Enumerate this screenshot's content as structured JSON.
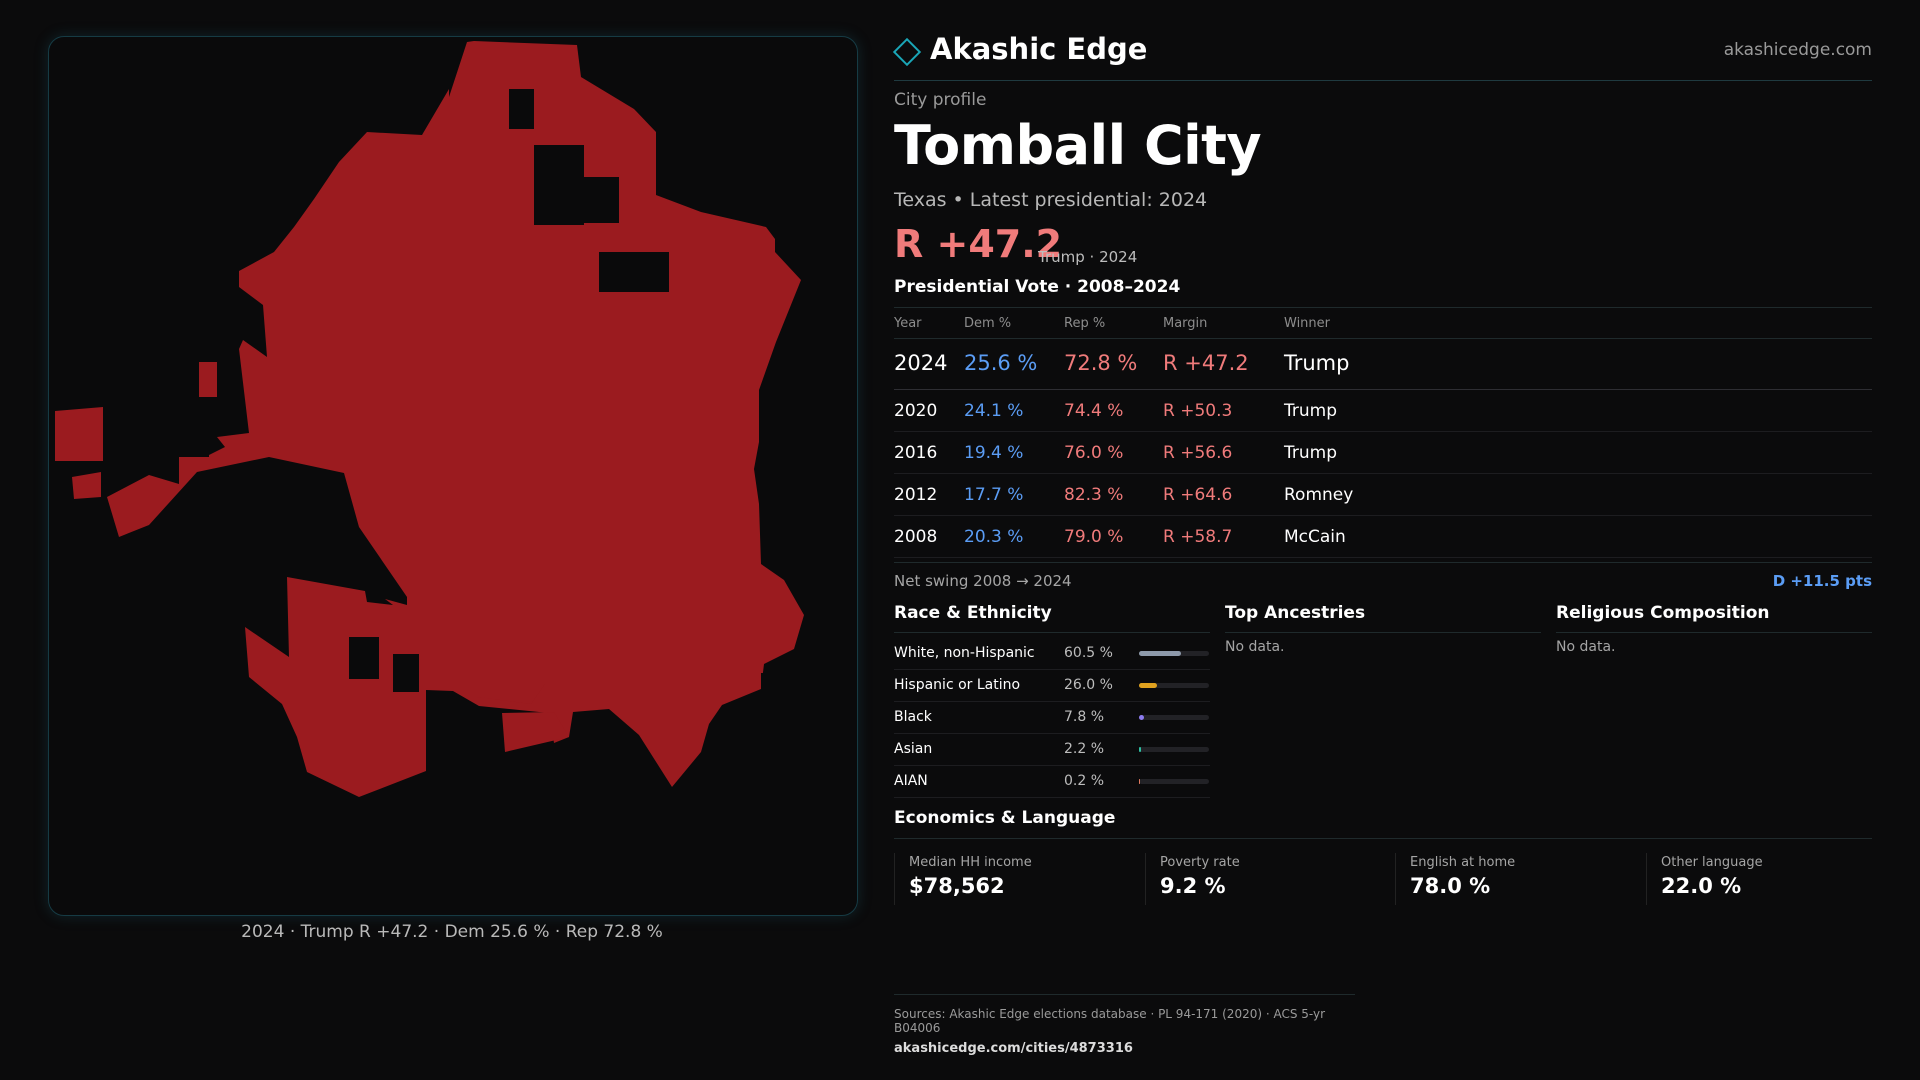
{
  "brand": {
    "name": "Akashic Edge",
    "url": "akashicedge.com",
    "accent": "#1aa6b7"
  },
  "header": {
    "profile_label": "City profile",
    "city": "Tomball City",
    "subtitle": "Texas • Latest presidential: 2024",
    "margin": "R +47.2",
    "margin_sub": "Trump · 2024"
  },
  "map": {
    "fill_color": "#9b1b1f",
    "caption": "2024 · Trump R +47.2 · Dem 25.6 % · Rep 72.8 %"
  },
  "vote": {
    "heading": "Presidential Vote · 2008–2024",
    "columns": {
      "year": "Year",
      "dem": "Dem %",
      "rep": "Rep %",
      "margin": "Margin",
      "winner": "Winner"
    },
    "rows": [
      {
        "year": "2024",
        "dem": "25.6 %",
        "rep": "72.8 %",
        "margin": "R +47.2",
        "winner": "Trump"
      },
      {
        "year": "2020",
        "dem": "24.1 %",
        "rep": "74.4 %",
        "margin": "R +50.3",
        "winner": "Trump"
      },
      {
        "year": "2016",
        "dem": "19.4 %",
        "rep": "76.0 %",
        "margin": "R +56.6",
        "winner": "Trump"
      },
      {
        "year": "2012",
        "dem": "17.7 %",
        "rep": "82.3 %",
        "margin": "R +64.6",
        "winner": "Romney"
      },
      {
        "year": "2008",
        "dem": "20.3 %",
        "rep": "79.0 %",
        "margin": "R +58.7",
        "winner": "McCain"
      }
    ],
    "dem_color": "#5b9df5",
    "rep_color": "#f07b7b"
  },
  "swing": {
    "label": "Net swing 2008 → 2024",
    "value": "D +11.5 pts"
  },
  "race": {
    "title": "Race & Ethnicity",
    "rows": [
      {
        "name": "White, non-Hispanic",
        "pct": "60.5 %",
        "share": 0.605,
        "color": "#8e9aab"
      },
      {
        "name": "Hispanic or Latino",
        "pct": "26.0 %",
        "share": 0.26,
        "color": "#e0a21f"
      },
      {
        "name": "Black",
        "pct": "7.8 %",
        "share": 0.078,
        "color": "#8d7cf0"
      },
      {
        "name": "Asian",
        "pct": "2.2 %",
        "share": 0.022,
        "color": "#2fbfa2"
      },
      {
        "name": "AIAN",
        "pct": "0.2 %",
        "share": 0.002,
        "color": "#e07a5f"
      }
    ]
  },
  "ancestries": {
    "title": "Top Ancestries",
    "empty": "No data."
  },
  "religion": {
    "title": "Religious Composition",
    "empty": "No data."
  },
  "economics": {
    "title": "Economics & Language",
    "cards": [
      {
        "label": "Median HH income",
        "value": "$78,562"
      },
      {
        "label": "Poverty rate",
        "value": "9.2 %"
      },
      {
        "label": "English at home",
        "value": "78.0 %"
      },
      {
        "label": "Other language",
        "value": "22.0 %"
      }
    ]
  },
  "footer": {
    "sources": "Sources: Akashic Edge elections database · PL 94-171 (2020) · ACS 5-yr B04006",
    "url": "akashicedge.com/cities/4873316"
  }
}
